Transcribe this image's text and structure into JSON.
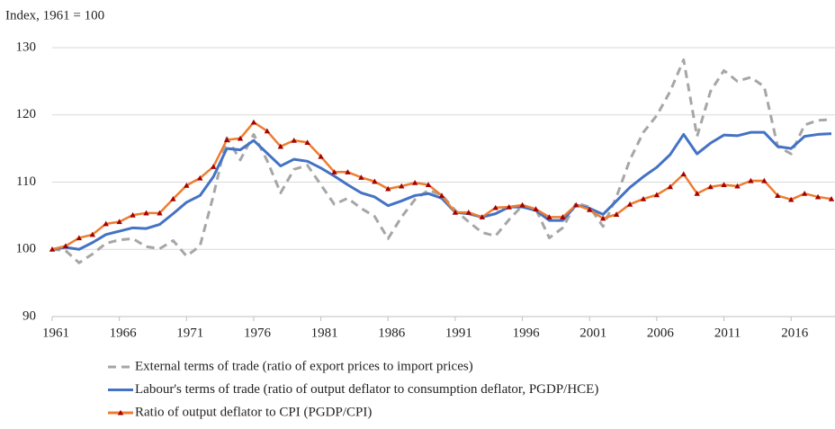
{
  "chart_data": {
    "type": "line",
    "y_label": "Index, 1961 = 100",
    "x": [
      1961,
      1962,
      1963,
      1964,
      1965,
      1966,
      1967,
      1968,
      1969,
      1970,
      1971,
      1972,
      1973,
      1974,
      1975,
      1976,
      1977,
      1978,
      1979,
      1980,
      1981,
      1982,
      1983,
      1984,
      1985,
      1986,
      1987,
      1988,
      1989,
      1990,
      1991,
      1992,
      1993,
      1994,
      1995,
      1996,
      1997,
      1998,
      1999,
      2000,
      2001,
      2002,
      2003,
      2004,
      2005,
      2006,
      2007,
      2008,
      2009,
      2010,
      2011,
      2012,
      2013,
      2014,
      2015,
      2016,
      2017,
      2018,
      2019
    ],
    "xlim": [
      1961,
      2019
    ],
    "xticks": [
      1961,
      1966,
      1971,
      1976,
      1981,
      1986,
      1991,
      1996,
      2001,
      2006,
      2011,
      2016
    ],
    "ylim": [
      90,
      130
    ],
    "yticks": [
      90,
      100,
      110,
      120,
      130
    ],
    "grid": true,
    "series": [
      {
        "name": "External terms of trade (ratio of export prices to import prices)",
        "color": "#a6a6a6",
        "dash": true,
        "values": [
          100,
          99.8,
          98,
          99.3,
          100.9,
          101.4,
          101.6,
          100.4,
          100.1,
          101.3,
          99,
          100.5,
          108,
          116.6,
          113.3,
          117.1,
          113.2,
          108.4,
          111.9,
          112.5,
          109.6,
          106.7,
          107.6,
          106.1,
          104.9,
          101.6,
          104.8,
          107.4,
          108.8,
          108.1,
          105.8,
          104.1,
          102.5,
          102,
          104.4,
          106.5,
          106,
          101.7,
          103.2,
          106.9,
          106.3,
          103.4,
          107.8,
          113.3,
          117.4,
          119.9,
          123.5,
          128.2,
          116.8,
          123.5,
          126.6,
          125,
          125.6,
          124.2,
          115.3,
          114.2,
          118.5,
          119.2,
          119.3
        ]
      },
      {
        "name": "Labour's terms of trade (ratio of output deflator to consumption deflator, PGDP/HCE)",
        "color": "#4472c4",
        "values": [
          100,
          100.3,
          100,
          101,
          102.2,
          102.7,
          103.2,
          103.1,
          103.7,
          105.3,
          107,
          108,
          110.8,
          115,
          114.8,
          116.2,
          114.3,
          112.4,
          113.4,
          113.1,
          112.1,
          110.9,
          109.6,
          108.4,
          107.8,
          106.5,
          107.2,
          108,
          108.3,
          107.6,
          105.5,
          105.3,
          104.8,
          105.3,
          106.3,
          106.3,
          105.8,
          104.3,
          104.3,
          106.6,
          106.1,
          105.2,
          107.2,
          109.2,
          110.8,
          112.2,
          114.1,
          117.1,
          114.2,
          115.8,
          117,
          116.9,
          117.4,
          117.4,
          115.3,
          115,
          116.8,
          117.1,
          117.2
        ]
      },
      {
        "name": "Ratio of output deflator to CPI  (PGDP/CPI)",
        "color": "#ed7d31",
        "marker_color": "#a50000",
        "values": [
          100,
          100.5,
          101.7,
          102.2,
          103.8,
          104.1,
          105.1,
          105.4,
          105.4,
          107.5,
          109.5,
          110.6,
          112.3,
          116.3,
          116.5,
          118.9,
          117.6,
          115.3,
          116.2,
          115.9,
          113.8,
          111.5,
          111.5,
          110.7,
          110.1,
          109.0,
          109.4,
          109.9,
          109.6,
          108.0,
          105.5,
          105.5,
          104.8,
          106.2,
          106.3,
          106.6,
          106.0,
          104.8,
          104.8,
          106.6,
          105.9,
          104.6,
          105.2,
          106.7,
          107.5,
          108.1,
          109.3,
          111.2,
          108.3,
          109.3,
          109.6,
          109.4,
          110.2,
          110.2,
          108.0,
          107.4,
          108.3,
          107.8,
          107.5
        ]
      }
    ]
  }
}
